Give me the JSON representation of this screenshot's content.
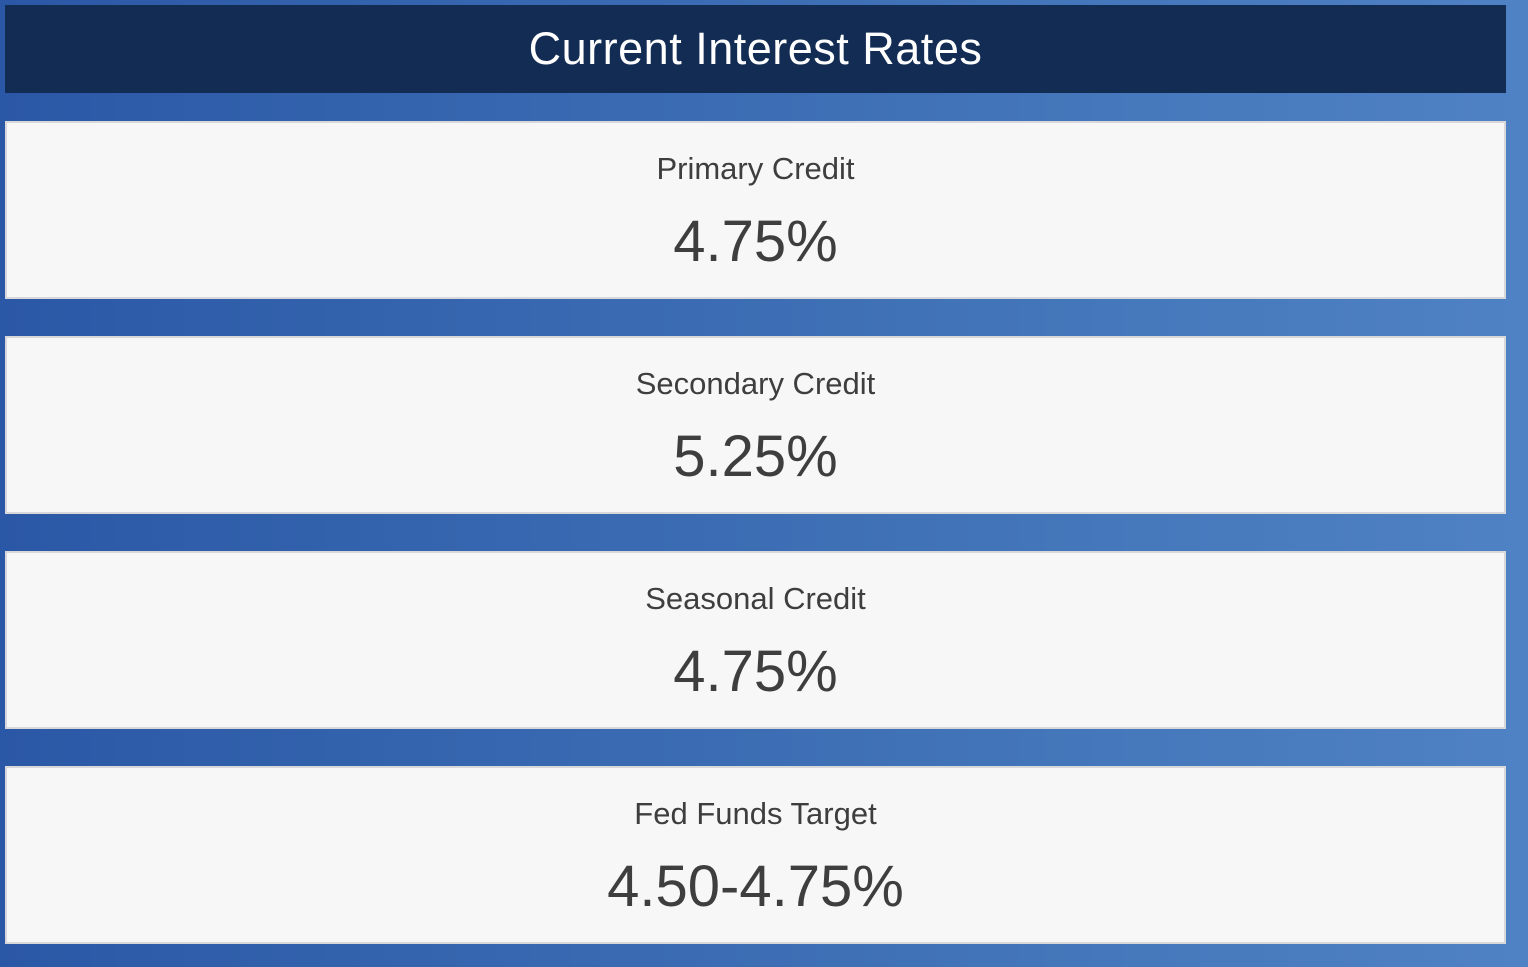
{
  "header": {
    "title": "Current Interest Rates"
  },
  "cards": [
    {
      "label": "Primary Credit",
      "value": "4.75%"
    },
    {
      "label": "Secondary Credit",
      "value": "5.25%"
    },
    {
      "label": "Seasonal Credit",
      "value": "4.75%"
    },
    {
      "label": "Fed Funds Target",
      "value": "4.50-4.75%"
    }
  ],
  "colors": {
    "header_bg": "#132c54",
    "header_text": "#ffffff",
    "background_gradient_start": "#2b58a6",
    "background_gradient_end": "#4f82c4",
    "card_bg": "#f7f7f7",
    "card_border": "#d8d8da",
    "card_text": "#3e3e3e"
  }
}
